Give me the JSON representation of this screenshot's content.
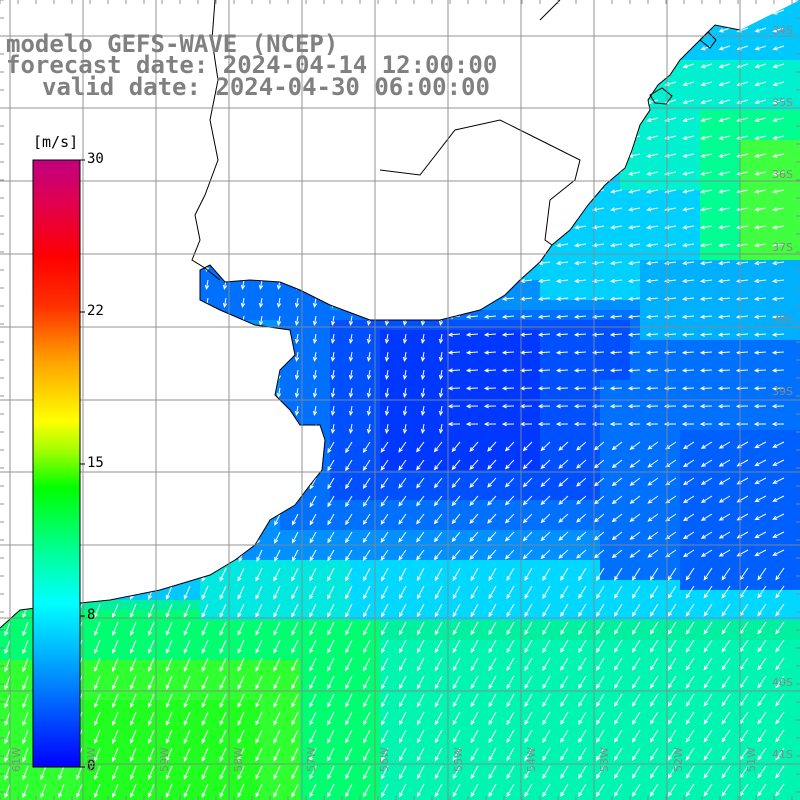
{
  "title": {
    "line1": "modelo GEFS-WAVE (NCEP)",
    "line2": "forecast date: 2024-04-14 12:00:00",
    "line3": "valid date: 2024-04-30 06:00:00"
  },
  "colorbar": {
    "unit": "[m/s]",
    "min": 0,
    "max": 30,
    "ticks": [
      "30",
      "22",
      "15",
      "8",
      "0"
    ],
    "tick_values": [
      30,
      22,
      15,
      8,
      0
    ],
    "stops": [
      "#0000ff",
      "#0050ff",
      "#00a0ff",
      "#00ffff",
      "#00ff80",
      "#00ff00",
      "#80ff00",
      "#ffff00",
      "#ffa000",
      "#ff4000",
      "#ff0000",
      "#e00060",
      "#c00080"
    ]
  },
  "lat_labels": [
    "34S",
    "35S",
    "36S",
    "37S",
    "38S",
    "39S",
    "40S",
    "41S"
  ],
  "lon_labels": [
    "61W",
    "60W",
    "59W",
    "58W",
    "57W",
    "56W",
    "55W",
    "54W",
    "53W",
    "52W",
    "51W"
  ],
  "colors": {
    "land": "#ffffff",
    "coast": "#000000",
    "grid": "#888888",
    "arrow": "#ffffff",
    "title": "#808080"
  },
  "field_description": {
    "variable": "wind speed",
    "units": "m/s",
    "value_range": [
      0,
      30
    ]
  }
}
